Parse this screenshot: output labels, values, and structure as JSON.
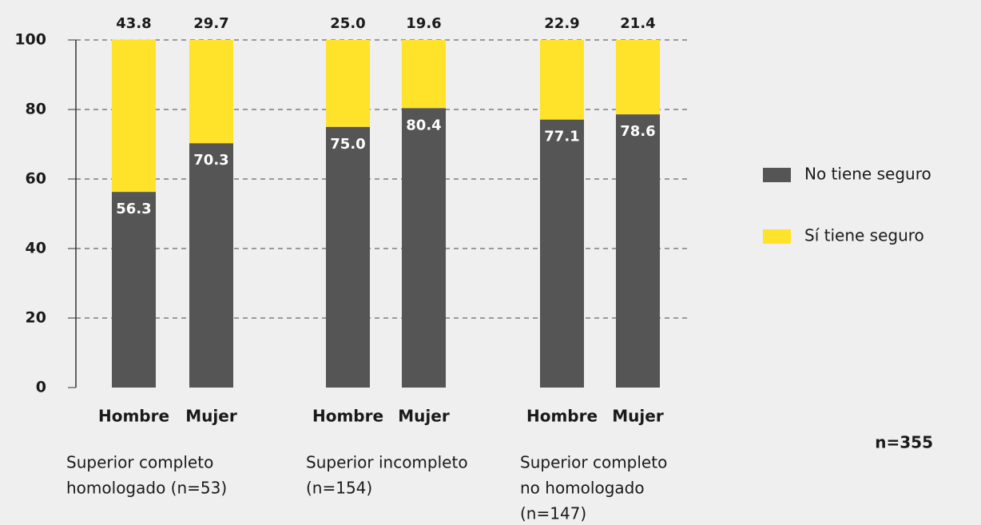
{
  "chart_data": {
    "type": "stacked_bar",
    "categories": [
      "Hombre",
      "Mujer",
      "Hombre",
      "Mujer",
      "Hombre",
      "Mujer"
    ],
    "groups": [
      [
        "Superior completo",
        "homologado (n=53)"
      ],
      [
        "Superior incompleto",
        "(n=154)"
      ],
      [
        "Superior completo",
        "no homologado",
        "(n=147)"
      ]
    ],
    "series": [
      {
        "name": "No tiene seguro",
        "color": "#555555",
        "values": [
          56.3,
          70.3,
          75.0,
          80.4,
          77.1,
          78.6
        ],
        "value_labels": [
          "56.3",
          "70.3",
          "75.0",
          "80.4",
          "77.1",
          "78.6"
        ]
      },
      {
        "name": "Sí tiene seguro",
        "color": "#ffe22a",
        "values": [
          43.8,
          29.7,
          25.0,
          19.6,
          22.9,
          21.4
        ],
        "value_labels": [
          "43.8",
          "29.7",
          "25.0",
          "19.6",
          "22.9",
          "21.4"
        ]
      }
    ],
    "ylim": [
      0,
      100
    ],
    "yticks": [
      0,
      20,
      40,
      60,
      80,
      100
    ],
    "grid": true,
    "legend": "right",
    "note": "n=355"
  }
}
